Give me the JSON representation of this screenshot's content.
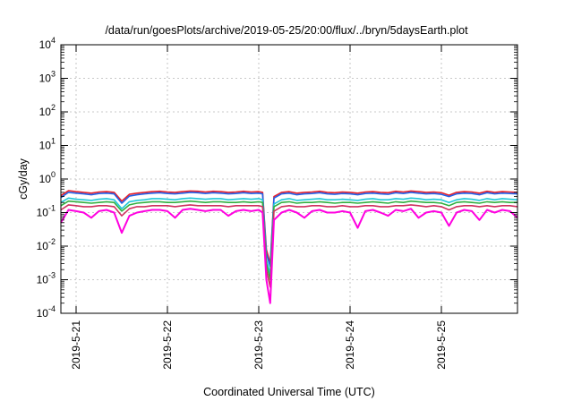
{
  "chart_data": {
    "type": "line",
    "title": "/data/run/goesPlots/archive/2019-05-25/20:00/flux/../bryn/5daysEarth.plot",
    "xlabel": "Coordinated Universal Time (UTC)",
    "ylabel": "cGy/day",
    "yscale": "log",
    "ylim": [
      0.0001,
      10000
    ],
    "xlim": [
      "2019-05-20T20:00",
      "2019-05-25T20:00"
    ],
    "grid": true,
    "legend": "none",
    "y_ticks": [
      {
        "base": "10",
        "exp": "-4"
      },
      {
        "base": "10",
        "exp": "-3"
      },
      {
        "base": "10",
        "exp": "-2"
      },
      {
        "base": "10",
        "exp": "-1"
      },
      {
        "base": "10",
        "exp": "0"
      },
      {
        "base": "10",
        "exp": "1"
      },
      {
        "base": "10",
        "exp": "2"
      },
      {
        "base": "10",
        "exp": "3"
      },
      {
        "base": "10",
        "exp": "4"
      }
    ],
    "x_ticks": [
      {
        "value": "2019-05-21T00:00",
        "label": "2019-5-21"
      },
      {
        "value": "2019-05-22T00:00",
        "label": "2019-5-22"
      },
      {
        "value": "2019-05-23T00:00",
        "label": "2019-5-23"
      },
      {
        "value": "2019-05-24T00:00",
        "label": "2019-5-24"
      },
      {
        "value": "2019-05-25T00:00",
        "label": "2019-5-25"
      }
    ],
    "x": [
      "2019-05-20T20:00",
      "2019-05-20T22:00",
      "2019-05-21T00:00",
      "2019-05-21T02:00",
      "2019-05-21T04:00",
      "2019-05-21T06:00",
      "2019-05-21T08:00",
      "2019-05-21T10:00",
      "2019-05-21T12:00",
      "2019-05-21T14:00",
      "2019-05-21T16:00",
      "2019-05-21T18:00",
      "2019-05-21T20:00",
      "2019-05-21T22:00",
      "2019-05-22T00:00",
      "2019-05-22T02:00",
      "2019-05-22T04:00",
      "2019-05-22T06:00",
      "2019-05-22T08:00",
      "2019-05-22T10:00",
      "2019-05-22T12:00",
      "2019-05-22T14:00",
      "2019-05-22T16:00",
      "2019-05-22T18:00",
      "2019-05-22T20:00",
      "2019-05-22T22:00",
      "2019-05-23T00:00",
      "2019-05-23T01:00",
      "2019-05-23T02:00",
      "2019-05-23T03:00",
      "2019-05-23T04:00",
      "2019-05-23T06:00",
      "2019-05-23T08:00",
      "2019-05-23T10:00",
      "2019-05-23T12:00",
      "2019-05-23T14:00",
      "2019-05-23T16:00",
      "2019-05-23T18:00",
      "2019-05-23T20:00",
      "2019-05-23T22:00",
      "2019-05-24T00:00",
      "2019-05-24T02:00",
      "2019-05-24T04:00",
      "2019-05-24T06:00",
      "2019-05-24T08:00",
      "2019-05-24T10:00",
      "2019-05-24T12:00",
      "2019-05-24T14:00",
      "2019-05-24T16:00",
      "2019-05-24T18:00",
      "2019-05-24T20:00",
      "2019-05-24T22:00",
      "2019-05-25T00:00",
      "2019-05-25T02:00",
      "2019-05-25T04:00",
      "2019-05-25T06:00",
      "2019-05-25T08:00",
      "2019-05-25T10:00",
      "2019-05-25T12:00",
      "2019-05-25T14:00",
      "2019-05-25T16:00",
      "2019-05-25T18:00",
      "2019-05-25T20:00"
    ],
    "series": [
      {
        "color": "#e8202a",
        "values": [
          0.32,
          0.45,
          0.42,
          0.4,
          0.38,
          0.41,
          0.42,
          0.4,
          0.22,
          0.35,
          0.38,
          0.4,
          0.42,
          0.43,
          0.41,
          0.4,
          0.42,
          0.44,
          0.43,
          0.41,
          0.43,
          0.42,
          0.4,
          0.41,
          0.43,
          0.41,
          0.42,
          0.4,
          0.008,
          0.003,
          0.3,
          0.4,
          0.42,
          0.38,
          0.4,
          0.41,
          0.43,
          0.4,
          0.39,
          0.41,
          0.4,
          0.38,
          0.41,
          0.42,
          0.4,
          0.39,
          0.43,
          0.41,
          0.44,
          0.42,
          0.4,
          0.41,
          0.39,
          0.33,
          0.4,
          0.42,
          0.41,
          0.38,
          0.43,
          0.4,
          0.42,
          0.41,
          0.4
        ]
      },
      {
        "color": "#2060e8",
        "values": [
          0.28,
          0.4,
          0.38,
          0.36,
          0.34,
          0.37,
          0.38,
          0.36,
          0.19,
          0.31,
          0.34,
          0.36,
          0.38,
          0.39,
          0.37,
          0.36,
          0.38,
          0.4,
          0.39,
          0.37,
          0.39,
          0.38,
          0.36,
          0.37,
          0.39,
          0.37,
          0.38,
          0.36,
          0.006,
          0.0025,
          0.27,
          0.36,
          0.38,
          0.34,
          0.36,
          0.37,
          0.39,
          0.36,
          0.35,
          0.37,
          0.36,
          0.34,
          0.37,
          0.38,
          0.36,
          0.35,
          0.39,
          0.37,
          0.4,
          0.38,
          0.36,
          0.37,
          0.35,
          0.3,
          0.36,
          0.38,
          0.37,
          0.34,
          0.39,
          0.36,
          0.38,
          0.37,
          0.36
        ]
      },
      {
        "color": "#20c8d8",
        "values": [
          0.2,
          0.27,
          0.25,
          0.24,
          0.23,
          0.25,
          0.26,
          0.24,
          0.13,
          0.21,
          0.23,
          0.24,
          0.26,
          0.26,
          0.25,
          0.24,
          0.26,
          0.27,
          0.26,
          0.25,
          0.26,
          0.26,
          0.24,
          0.25,
          0.26,
          0.25,
          0.26,
          0.24,
          0.004,
          0.0015,
          0.18,
          0.24,
          0.26,
          0.23,
          0.24,
          0.25,
          0.26,
          0.24,
          0.24,
          0.25,
          0.24,
          0.23,
          0.25,
          0.26,
          0.24,
          0.24,
          0.26,
          0.25,
          0.27,
          0.26,
          0.24,
          0.25,
          0.24,
          0.2,
          0.24,
          0.26,
          0.25,
          0.23,
          0.26,
          0.24,
          0.26,
          0.25,
          0.24
        ]
      },
      {
        "color": "#30b040",
        "values": [
          0.16,
          0.22,
          0.21,
          0.2,
          0.19,
          0.2,
          0.21,
          0.2,
          0.11,
          0.17,
          0.19,
          0.2,
          0.21,
          0.21,
          0.2,
          0.2,
          0.21,
          0.22,
          0.21,
          0.2,
          0.21,
          0.21,
          0.2,
          0.2,
          0.21,
          0.2,
          0.21,
          0.2,
          0.003,
          0.001,
          0.15,
          0.2,
          0.21,
          0.19,
          0.2,
          0.2,
          0.21,
          0.2,
          0.19,
          0.2,
          0.2,
          0.19,
          0.2,
          0.21,
          0.2,
          0.19,
          0.21,
          0.2,
          0.22,
          0.21,
          0.2,
          0.2,
          0.19,
          0.16,
          0.2,
          0.21,
          0.2,
          0.19,
          0.21,
          0.2,
          0.21,
          0.2,
          0.2
        ]
      },
      {
        "color": "#d03060",
        "values": [
          0.12,
          0.17,
          0.16,
          0.15,
          0.15,
          0.16,
          0.16,
          0.15,
          0.08,
          0.13,
          0.15,
          0.15,
          0.16,
          0.16,
          0.16,
          0.15,
          0.16,
          0.17,
          0.16,
          0.16,
          0.16,
          0.16,
          0.15,
          0.16,
          0.16,
          0.16,
          0.16,
          0.15,
          0.002,
          0.0006,
          0.11,
          0.15,
          0.16,
          0.15,
          0.15,
          0.16,
          0.16,
          0.15,
          0.15,
          0.16,
          0.15,
          0.15,
          0.16,
          0.16,
          0.15,
          0.15,
          0.16,
          0.16,
          0.17,
          0.16,
          0.15,
          0.16,
          0.15,
          0.12,
          0.15,
          0.16,
          0.16,
          0.15,
          0.16,
          0.15,
          0.16,
          0.16,
          0.15
        ]
      },
      {
        "color": "#ff00e0",
        "values": [
          0.05,
          0.12,
          0.11,
          0.1,
          0.07,
          0.11,
          0.12,
          0.1,
          0.025,
          0.08,
          0.1,
          0.11,
          0.12,
          0.12,
          0.11,
          0.07,
          0.12,
          0.13,
          0.12,
          0.11,
          0.12,
          0.12,
          0.08,
          0.11,
          0.12,
          0.11,
          0.12,
          0.1,
          0.001,
          0.0002,
          0.06,
          0.1,
          0.12,
          0.1,
          0.07,
          0.11,
          0.12,
          0.1,
          0.1,
          0.11,
          0.1,
          0.035,
          0.11,
          0.12,
          0.1,
          0.08,
          0.12,
          0.11,
          0.13,
          0.07,
          0.1,
          0.11,
          0.1,
          0.04,
          0.1,
          0.12,
          0.11,
          0.06,
          0.12,
          0.1,
          0.12,
          0.11,
          0.07
        ]
      }
    ]
  }
}
